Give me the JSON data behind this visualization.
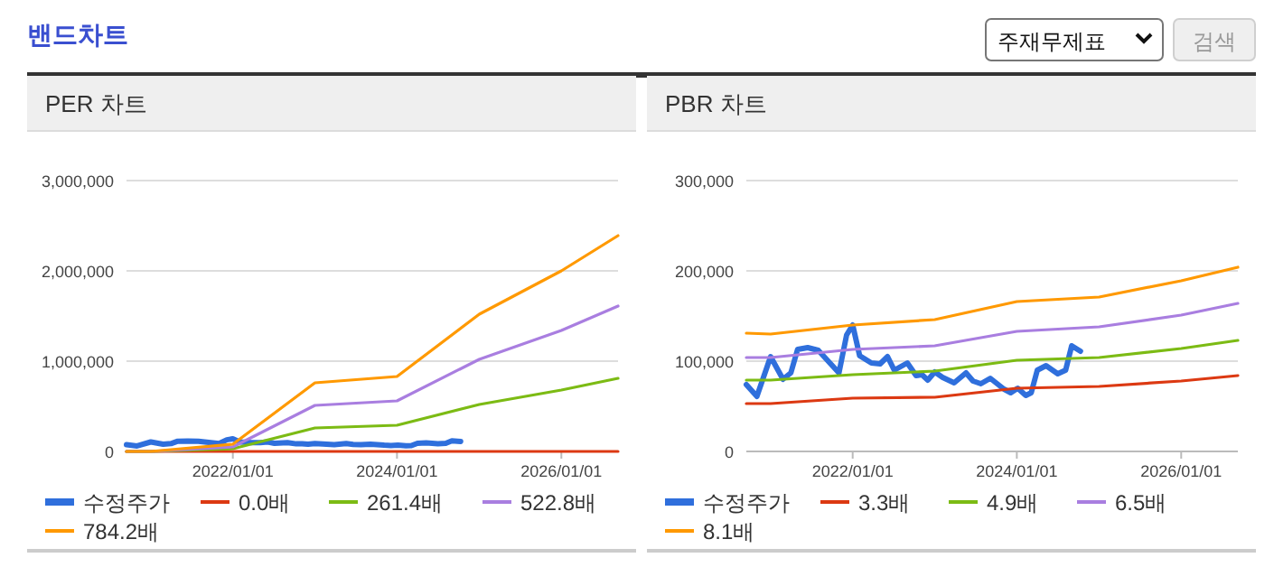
{
  "chart_data": [
    {
      "type": "line",
      "title": "PER 차트",
      "annotations": [
        "밴드차트"
      ],
      "xlim": [
        "2020-09-15",
        "2026-09-10"
      ],
      "xticks": [
        {
          "value": "2022-01-01",
          "label": "2022/01/01"
        },
        {
          "value": "2024-01-01",
          "label": "2024/01/01"
        },
        {
          "value": "2026-01-01",
          "label": "2026/01/01"
        }
      ],
      "ylim": [
        0,
        3000000
      ],
      "yticks": [
        0,
        {
          "value": 1000000,
          "label": "1,000,000"
        },
        {
          "value": 2000000,
          "label": "2,000,000"
        },
        {
          "value": 3000000,
          "label": "3,000,000"
        }
      ],
      "grid": "y",
      "legend": "bottom",
      "marker": "none",
      "line_style": "solid",
      "series": [
        {
          "name": "수정주가",
          "color": "#2f6fdc",
          "x": [
            "2020-09-15",
            "2020-11-01",
            "2021-01-01",
            "2021-02-25",
            "2021-04-01",
            "2021-05-01",
            "2021-06-15",
            "2021-08-01",
            "2021-11-01",
            "2021-12-05",
            "2022-01-01",
            "2022-02-01",
            "2022-03-25",
            "2022-05-03",
            "2022-06-05",
            "2022-07-05",
            "2022-09-01",
            "2022-10-10",
            "2022-11-05",
            "2022-12-01",
            "2023-01-01",
            "2023-02-05",
            "2023-03-28",
            "2023-05-20",
            "2023-06-20",
            "2023-07-25",
            "2023-09-05",
            "2023-11-05",
            "2023-12-05",
            "2024-01-05",
            "2024-02-10",
            "2024-03-05",
            "2024-04-01",
            "2024-05-10",
            "2024-07-01",
            "2024-08-05",
            "2024-09-01",
            "2024-10-10"
          ],
          "values": [
            74000,
            61000,
            105000,
            80000,
            87000,
            113000,
            115000,
            112000,
            87000,
            129000,
            140000,
            106000,
            98000,
            97000,
            105000,
            90000,
            98000,
            84000,
            85000,
            79000,
            88000,
            82000,
            76000,
            87000,
            78000,
            75000,
            81000,
            69000,
            65000,
            70000,
            62000,
            65000,
            90000,
            95000,
            86000,
            90000,
            117000,
            111000
          ]
        },
        {
          "name": "0.0배",
          "color": "#dc3912",
          "x": [
            "2020-09-15",
            "2021-01-01",
            "2022-01-01",
            "2023-01-01",
            "2024-01-01",
            "2025-01-01",
            "2026-01-01",
            "2026-09-10"
          ],
          "values": [
            0,
            0,
            0,
            0,
            0,
            0,
            0,
            0
          ]
        },
        {
          "name": "261.4배",
          "color": "#7cbb14",
          "x": [
            "2020-09-15",
            "2021-01-01",
            "2022-01-01",
            "2023-01-01",
            "2024-01-01",
            "2025-01-01",
            "2026-01-01",
            "2026-09-10"
          ],
          "values": [
            0,
            0,
            30000,
            260000,
            290000,
            520000,
            680000,
            810000
          ]
        },
        {
          "name": "522.8배",
          "color": "#a97ee0",
          "x": [
            "2020-09-15",
            "2021-01-01",
            "2022-01-01",
            "2023-01-01",
            "2024-01-01",
            "2025-01-01",
            "2026-01-01",
            "2026-09-10"
          ],
          "values": [
            0,
            0,
            50000,
            510000,
            560000,
            1020000,
            1340000,
            1610000
          ]
        },
        {
          "name": "784.2배",
          "color": "#ff9900",
          "x": [
            "2020-09-15",
            "2021-01-01",
            "2022-01-01",
            "2023-01-01",
            "2024-01-01",
            "2025-01-01",
            "2026-01-01",
            "2026-09-10"
          ],
          "values": [
            0,
            0,
            80000,
            760000,
            830000,
            1520000,
            2000000,
            2390000
          ]
        }
      ]
    },
    {
      "type": "line",
      "title": "PBR 차트",
      "annotations": [
        "주재무제표",
        "검색"
      ],
      "xlim": [
        "2020-09-15",
        "2026-09-10"
      ],
      "xticks": [
        {
          "value": "2022-01-01",
          "label": "2022/01/01"
        },
        {
          "value": "2024-01-01",
          "label": "2024/01/01"
        },
        {
          "value": "2026-01-01",
          "label": "2026/01/01"
        }
      ],
      "ylim": [
        0,
        300000
      ],
      "yticks": [
        0,
        {
          "value": 100000,
          "label": "100,000"
        },
        {
          "value": 200000,
          "label": "200,000"
        },
        {
          "value": 300000,
          "label": "300,000"
        }
      ],
      "grid": "y",
      "legend": "bottom",
      "marker": "none",
      "line_style": "solid",
      "series": [
        {
          "name": "수정주가",
          "color": "#2f6fdc",
          "x": [
            "2020-09-15",
            "2020-11-01",
            "2021-01-01",
            "2021-02-25",
            "2021-04-01",
            "2021-05-01",
            "2021-06-15",
            "2021-08-01",
            "2021-11-01",
            "2021-12-05",
            "2022-01-01",
            "2022-02-01",
            "2022-03-25",
            "2022-05-03",
            "2022-06-05",
            "2022-07-05",
            "2022-09-01",
            "2022-10-10",
            "2022-11-05",
            "2022-12-01",
            "2023-01-01",
            "2023-02-05",
            "2023-03-28",
            "2023-05-20",
            "2023-06-20",
            "2023-07-25",
            "2023-09-05",
            "2023-11-05",
            "2023-12-05",
            "2024-01-05",
            "2024-02-10",
            "2024-03-05",
            "2024-04-01",
            "2024-05-10",
            "2024-07-01",
            "2024-08-05",
            "2024-09-01",
            "2024-10-10"
          ],
          "values": [
            74000,
            61000,
            105000,
            80000,
            87000,
            113000,
            115000,
            112000,
            87000,
            129000,
            140000,
            106000,
            98000,
            97000,
            105000,
            90000,
            98000,
            84000,
            85000,
            79000,
            88000,
            82000,
            76000,
            87000,
            78000,
            75000,
            81000,
            69000,
            65000,
            70000,
            62000,
            65000,
            90000,
            95000,
            86000,
            90000,
            117000,
            111000
          ]
        },
        {
          "name": "3.3배",
          "color": "#dc3912",
          "x": [
            "2020-09-15",
            "2021-01-01",
            "2022-01-01",
            "2023-01-01",
            "2024-01-01",
            "2025-01-01",
            "2026-01-01",
            "2026-09-10"
          ],
          "values": [
            53000,
            53000,
            59000,
            60000,
            70000,
            72000,
            78000,
            84000
          ]
        },
        {
          "name": "4.9배",
          "color": "#7cbb14",
          "x": [
            "2020-09-15",
            "2021-01-01",
            "2022-01-01",
            "2023-01-01",
            "2024-01-01",
            "2025-01-01",
            "2026-01-01",
            "2026-09-10"
          ],
          "values": [
            79000,
            79000,
            85000,
            89000,
            101000,
            104000,
            114000,
            123000
          ]
        },
        {
          "name": "6.5배",
          "color": "#a97ee0",
          "x": [
            "2020-09-15",
            "2021-01-01",
            "2022-01-01",
            "2023-01-01",
            "2024-01-01",
            "2025-01-01",
            "2026-01-01",
            "2026-09-10"
          ],
          "values": [
            104000,
            104000,
            113000,
            117000,
            133000,
            138000,
            151000,
            164000
          ]
        },
        {
          "name": "8.1배",
          "color": "#ff9900",
          "x": [
            "2020-09-15",
            "2021-01-01",
            "2022-01-01",
            "2023-01-01",
            "2024-01-01",
            "2025-01-01",
            "2026-01-01",
            "2026-09-10"
          ],
          "values": [
            131000,
            130000,
            140000,
            146000,
            166000,
            171000,
            189000,
            204000
          ]
        }
      ]
    }
  ]
}
